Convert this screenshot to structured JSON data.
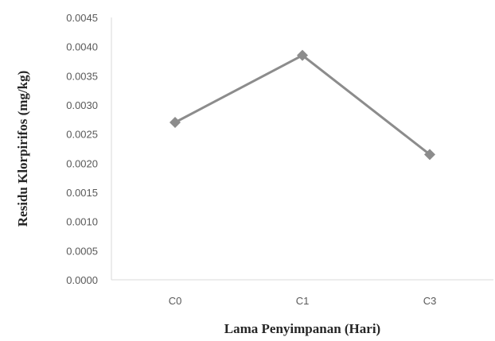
{
  "chart_data": {
    "type": "line",
    "categories": [
      "C0",
      "C1",
      "C3"
    ],
    "series": [
      {
        "values": [
          0.0027,
          0.00385,
          0.00215
        ],
        "marker": "diamond",
        "color": "#8c8c8c"
      }
    ],
    "xlabel": "Lama Penyimpanan (Hari)",
    "ylabel": "Residu Klorpirifos (mg/kg)",
    "ylim": [
      0,
      0.0045
    ],
    "y_ticks": [
      "0.0000",
      "0.0005",
      "0.0010",
      "0.0015",
      "0.0020",
      "0.0025",
      "0.0030",
      "0.0035",
      "0.0040",
      "0.0045"
    ],
    "grid": false,
    "legend": "none"
  }
}
